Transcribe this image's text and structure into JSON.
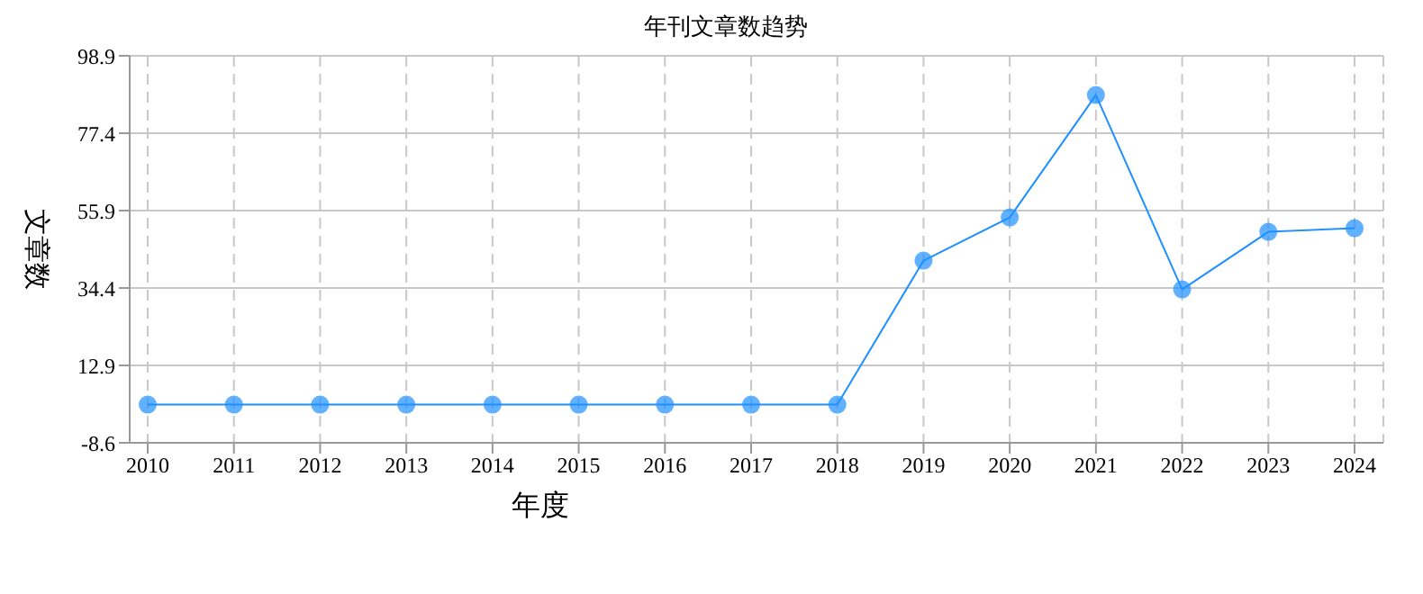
{
  "chart_data": {
    "type": "line",
    "title": "年刊文章数趋势",
    "xlabel": "年度",
    "ylabel": "文章数",
    "categories": [
      "2010",
      "2011",
      "2012",
      "2013",
      "2014",
      "2015",
      "2016",
      "2017",
      "2018",
      "2019",
      "2020",
      "2021",
      "2022",
      "2023",
      "2024"
    ],
    "series": [
      {
        "color": "#1e90ff",
        "values": [
          2,
          2,
          2,
          2,
          2,
          2,
          2,
          2,
          2,
          42,
          54,
          88,
          34,
          50,
          51
        ]
      }
    ],
    "ylim": [
      -8.6,
      98.9
    ],
    "yticks": [
      -8.6,
      12.9,
      34.4,
      55.9,
      77.4,
      98.9
    ],
    "grid": true,
    "marker": "circle",
    "line_style": "solid"
  }
}
